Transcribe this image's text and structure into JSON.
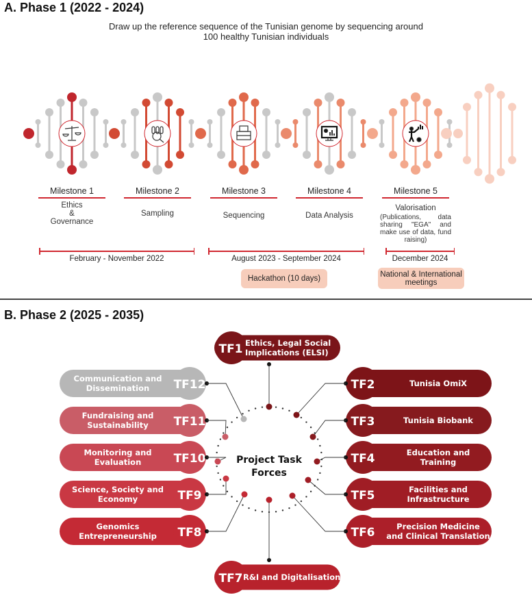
{
  "phase1": {
    "title": "A. Phase 1 (2022 - 2024)",
    "subtitle_line1": "Draw up the reference sequence of the Tunisian genome by sequencing around",
    "subtitle_line2": "100 healthy Tunisian individuals",
    "milestones": [
      {
        "label": "Milestone 1",
        "desc": [
          "Ethics",
          "&",
          "Governance"
        ],
        "icon": "scales-of-justice-icon",
        "color": "#c0262d"
      },
      {
        "label": "Milestone 2",
        "desc": [
          "Sampling"
        ],
        "icon": "sample-tubes-magnifier-icon",
        "color": "#d24a33"
      },
      {
        "label": "Milestone 3",
        "desc": [
          "Sequencing"
        ],
        "icon": "sequencer-machine-icon",
        "color": "#e0694b"
      },
      {
        "label": "Milestone 4",
        "desc": [
          "Data Analysis"
        ],
        "icon": "monitor-chart-icon",
        "color": "#ea8a6c"
      },
      {
        "label": "Milestone 5",
        "desc": [
          "Valorisation"
        ],
        "desc_detail": "(Publications, data sharing \"EGA\" and make use of data, fund raising)",
        "icon": "presenter-chart-icon",
        "color": "#f3a88c"
      }
    ],
    "fade_color": "#f8cfc0",
    "grey_color": "#c8c8c8",
    "periods": [
      {
        "label": "February - November 2022"
      },
      {
        "label": "August 2023 - September 2024"
      },
      {
        "label": "December 2024"
      }
    ],
    "events": [
      {
        "label": "Hackathon (10 days)"
      },
      {
        "label": "National & International meetings"
      }
    ]
  },
  "phase2": {
    "title": "B. Phase 2 (2025 - 2035)",
    "center_line1": "Project Task",
    "center_line2": "Forces",
    "task_forces": [
      {
        "id": "TF1",
        "lines": [
          "Ethics, Legal Social",
          "Implications (ELSI)"
        ],
        "color": "#7a1519"
      },
      {
        "id": "TF2",
        "lines": [
          "Tunisia OmiX"
        ],
        "color": "#7d1418"
      },
      {
        "id": "TF3",
        "lines": [
          "Tunisia Biobank"
        ],
        "color": "#861a1e"
      },
      {
        "id": "TF4",
        "lines": [
          "Education and",
          "Training"
        ],
        "color": "#921b20"
      },
      {
        "id": "TF5",
        "lines": [
          "Facilities and",
          "Infrastructure"
        ],
        "color": "#a01d25"
      },
      {
        "id": "TF6",
        "lines": [
          "Precision Medicine",
          "and Clinical Translation"
        ],
        "color": "#ac1f29"
      },
      {
        "id": "TF7",
        "lines": [
          "R&I and Digitalisation"
        ],
        "color": "#b8222c"
      },
      {
        "id": "TF8",
        "lines": [
          "Genomics",
          "Entrepreneurship"
        ],
        "color": "#c42a35"
      },
      {
        "id": "TF9",
        "lines": [
          "Science, Society and",
          "Economy"
        ],
        "color": "#c93843"
      },
      {
        "id": "TF10",
        "lines": [
          "Monitoring and",
          "Evaluation"
        ],
        "color": "#c94854"
      },
      {
        "id": "TF11",
        "lines": [
          "Fundraising and",
          "Sustainability"
        ],
        "color": "#c95d67"
      },
      {
        "id": "TF12",
        "lines": [
          "Communication and",
          "Dissemination"
        ],
        "color": "#b7b7b7"
      }
    ]
  }
}
